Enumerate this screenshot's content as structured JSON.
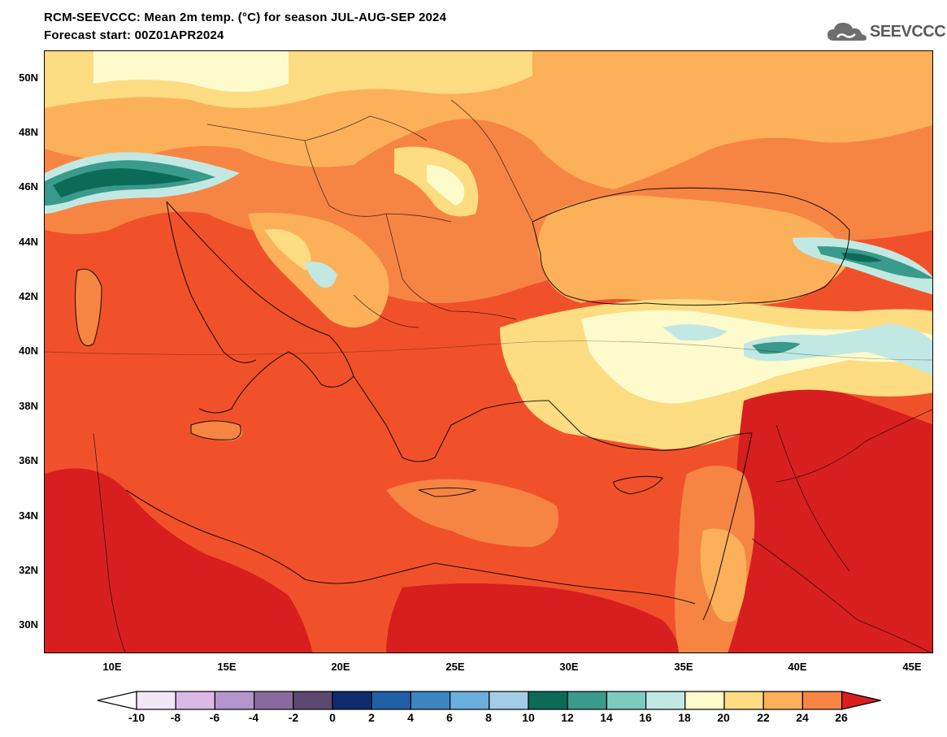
{
  "title_line1": "RCM-SEEVCCC: Mean 2m temp. (°C) for season JUL-AUG-SEP 2024",
  "title_line2": "Forecast start: 00Z01APR2024",
  "logo": {
    "text": "SEEVCCC",
    "icon": "cloud-logo-icon"
  },
  "map": {
    "lat_labels": [
      "50N",
      "48N",
      "46N",
      "44N",
      "42N",
      "40N",
      "38N",
      "36N",
      "34N",
      "32N",
      "30N"
    ],
    "lon_labels": [
      "10E",
      "15E",
      "20E",
      "25E",
      "30E",
      "35E",
      "40E",
      "45E"
    ],
    "lon_range": [
      7,
      46
    ],
    "lat_range": [
      29,
      51
    ]
  },
  "colorbar": {
    "labels": [
      "-10",
      "-8",
      "-6",
      "-4",
      "-2",
      "0",
      "2",
      "4",
      "6",
      "8",
      "10",
      "12",
      "14",
      "16",
      "18",
      "20",
      "22",
      "24",
      "26"
    ],
    "colors": [
      "#f2e8f5",
      "#dcb8e6",
      "#b495cc",
      "#8a6a9e",
      "#5c4870",
      "#0e2c6b",
      "#1f5fa3",
      "#3c86c0",
      "#6aaede",
      "#a3cce8",
      "#0b6b57",
      "#3a9a8b",
      "#7dcbbe",
      "#c2e8e3",
      "#fdfbcc",
      "#fddc82",
      "#fdb05a",
      "#f68544",
      "#f1512a"
    ],
    "under_color": "#ffffff",
    "over_color": "#d71f1f"
  }
}
